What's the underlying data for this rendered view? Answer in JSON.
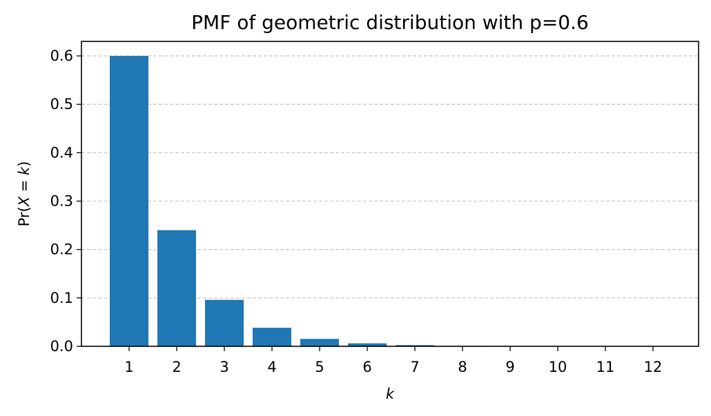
{
  "chart_data": {
    "type": "bar",
    "title": "PMF of geometric distribution with p=0.6",
    "xlabel": "k",
    "ylabel": "Pr(X = k)",
    "ylabel_parts": {
      "prefix": "Pr(",
      "var": "X",
      "eq": " = ",
      "k": "k",
      "suffix": ")"
    },
    "categories": [
      "1",
      "2",
      "3",
      "4",
      "5",
      "6",
      "7",
      "8",
      "9",
      "10",
      "11",
      "12"
    ],
    "values": [
      0.6,
      0.24,
      0.096,
      0.0384,
      0.01536,
      0.006144,
      0.0024576,
      0.00098304,
      0.000393216,
      0.0001572864,
      6.291456e-05,
      2.5165824e-05
    ],
    "ylim": [
      0,
      0.63
    ],
    "yticks": [
      "0.0",
      "0.1",
      "0.2",
      "0.3",
      "0.4",
      "0.5",
      "0.6"
    ],
    "grid": "y",
    "colors": {
      "bar": "#1f77b4",
      "grid": "#c8c8c8",
      "axis": "#000000"
    }
  }
}
